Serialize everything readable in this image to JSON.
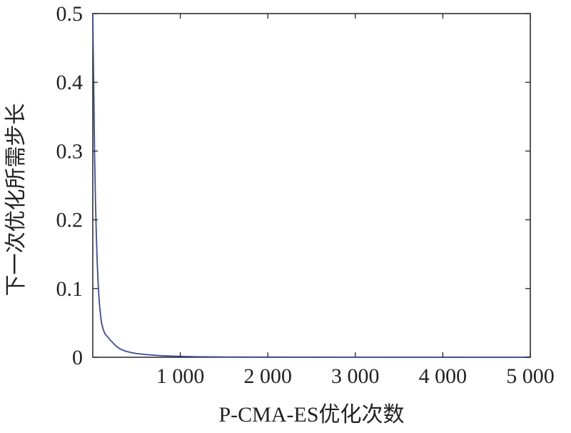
{
  "chart_data": {
    "type": "line",
    "title": "",
    "xlabel": "P-CMA-ES优化次数",
    "ylabel": "下一次优化所需步长",
    "xlim": [
      0,
      5000
    ],
    "ylim": [
      0,
      0.5
    ],
    "grid": false,
    "x_ticks": [
      1000,
      2000,
      3000,
      4000,
      5000
    ],
    "x_tick_labels": [
      "1 000",
      "2 000",
      "3 000",
      "4 000",
      "5 000"
    ],
    "y_ticks": [
      0,
      0.1,
      0.2,
      0.3,
      0.4,
      0.5
    ],
    "y_tick_labels": [
      "0",
      "0.1",
      "0.2",
      "0.3",
      "0.4",
      "0.5"
    ],
    "series": [
      {
        "color": "#3b4a9c",
        "x": [
          0,
          10,
          20,
          30,
          40,
          50,
          60,
          70,
          80,
          90,
          100,
          120,
          140,
          160,
          180,
          200,
          230,
          260,
          300,
          350,
          400,
          450,
          500,
          600,
          700,
          800,
          1000,
          1200,
          1500,
          2000,
          3000,
          4000,
          5000
        ],
        "y": [
          0.5,
          0.4,
          0.3,
          0.23,
          0.18,
          0.14,
          0.11,
          0.088,
          0.072,
          0.06,
          0.05,
          0.04,
          0.034,
          0.031,
          0.028,
          0.025,
          0.021,
          0.017,
          0.013,
          0.01,
          0.008,
          0.0065,
          0.0055,
          0.004,
          0.003,
          0.0022,
          0.0013,
          0.0008,
          0.0004,
          0.0002,
          0.0001,
          5e-05,
          2e-05
        ]
      }
    ]
  }
}
